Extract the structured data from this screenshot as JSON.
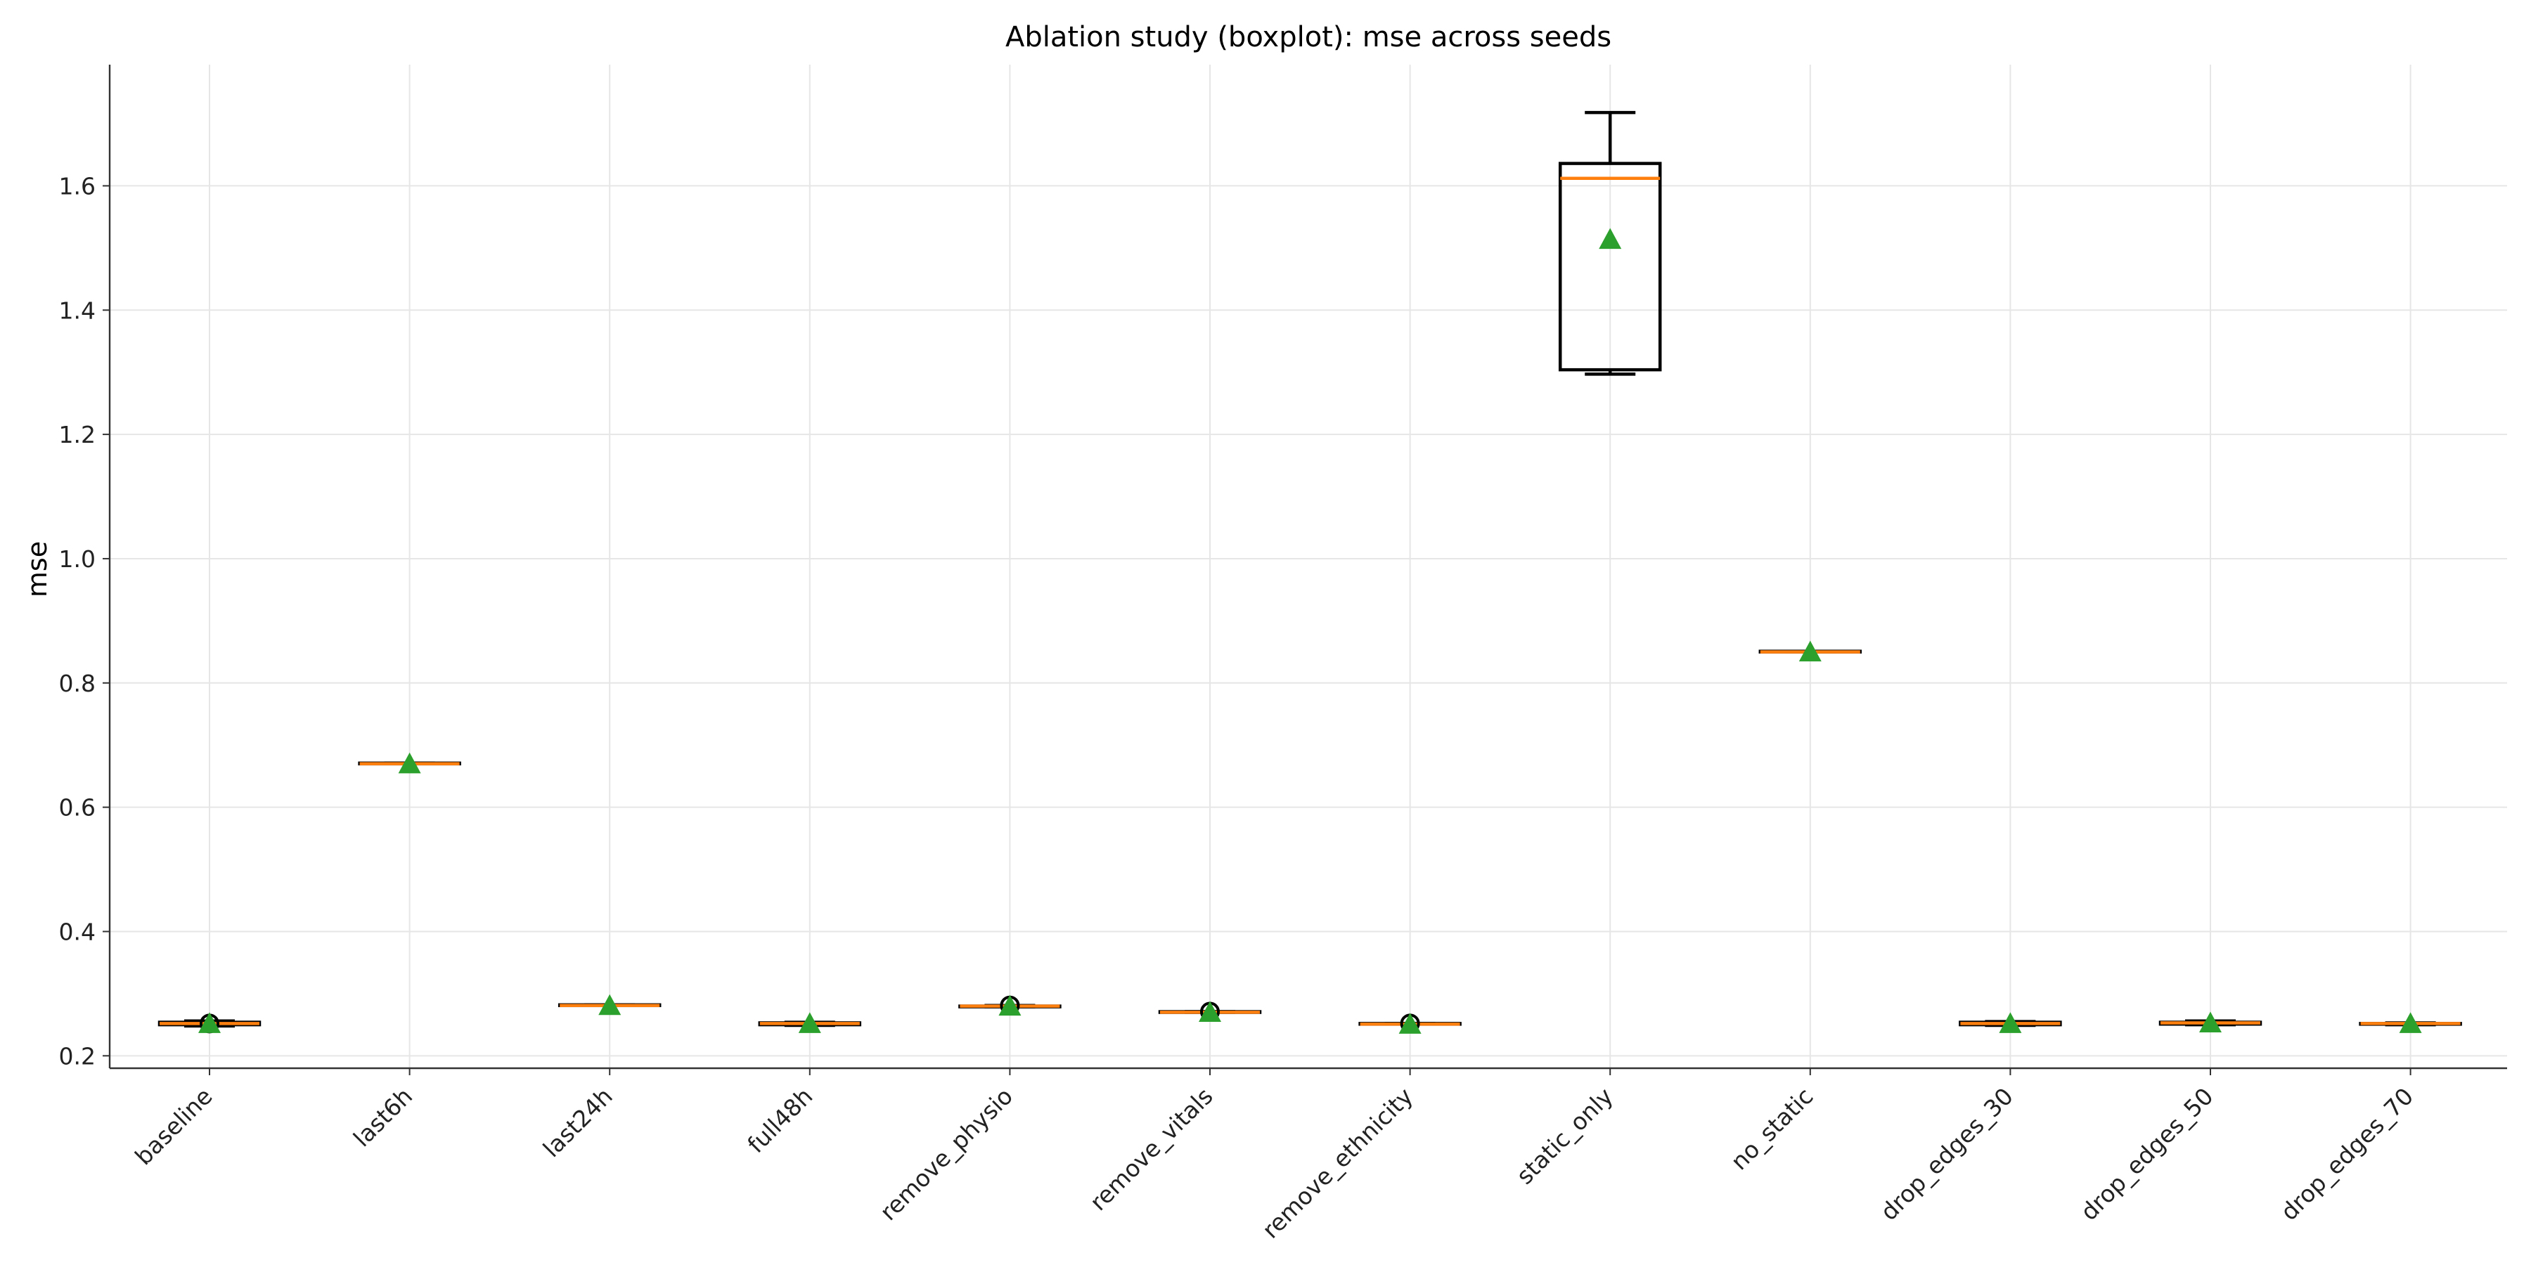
{
  "chart_data": {
    "type": "boxplot",
    "title": "Ablation study (boxplot): mse across seeds",
    "xlabel": "",
    "ylabel": "mse",
    "ylim": [
      0.18,
      1.795
    ],
    "yticks": [
      0.2,
      0.4,
      0.6,
      0.8,
      1.0,
      1.2,
      1.4,
      1.6
    ],
    "ytick_labels": [
      "0.2",
      "0.4",
      "0.6",
      "0.8",
      "1.0",
      "1.2",
      "1.4",
      "1.6"
    ],
    "grid": true,
    "legend": "none",
    "categories": [
      "baseline",
      "last6h",
      "last24h",
      "full48h",
      "remove_physio",
      "remove_vitals",
      "remove_ethnicity",
      "static_only",
      "no_static",
      "drop_edges_30",
      "drop_edges_50",
      "drop_edges_70"
    ],
    "boxes": [
      {
        "whislo": 0.248,
        "q1": 0.25,
        "med": 0.252,
        "q3": 0.254,
        "whishi": 0.256,
        "mean": 0.252,
        "fliers": [
          0.252
        ]
      },
      {
        "whislo": 0.67,
        "q1": 0.67,
        "med": 0.67,
        "q3": 0.671,
        "whishi": 0.671,
        "mean": 0.67,
        "fliers": []
      },
      {
        "whislo": 0.281,
        "q1": 0.281,
        "med": 0.281,
        "q3": 0.282,
        "whishi": 0.282,
        "mean": 0.281,
        "fliers": []
      },
      {
        "whislo": 0.249,
        "q1": 0.25,
        "med": 0.252,
        "q3": 0.253,
        "whishi": 0.254,
        "mean": 0.252,
        "fliers": []
      },
      {
        "whislo": 0.279,
        "q1": 0.279,
        "med": 0.28,
        "q3": 0.28,
        "whishi": 0.281,
        "mean": 0.28,
        "fliers": [
          0.281
        ]
      },
      {
        "whislo": 0.27,
        "q1": 0.27,
        "med": 0.27,
        "q3": 0.271,
        "whishi": 0.271,
        "mean": 0.27,
        "fliers": [
          0.271
        ]
      },
      {
        "whislo": 0.251,
        "q1": 0.251,
        "med": 0.251,
        "q3": 0.252,
        "whishi": 0.252,
        "mean": 0.251,
        "fliers": [
          0.252
        ]
      },
      {
        "whislo": 1.297,
        "q1": 1.304,
        "med": 1.612,
        "q3": 1.636,
        "whishi": 1.718,
        "mean": 1.514,
        "fliers": []
      },
      {
        "whislo": 0.85,
        "q1": 0.85,
        "med": 0.85,
        "q3": 0.851,
        "whishi": 0.851,
        "mean": 0.85,
        "fliers": []
      },
      {
        "whislo": 0.249,
        "q1": 0.25,
        "med": 0.252,
        "q3": 0.254,
        "whishi": 0.255,
        "mean": 0.252,
        "fliers": []
      },
      {
        "whislo": 0.25,
        "q1": 0.251,
        "med": 0.253,
        "q3": 0.254,
        "whishi": 0.256,
        "mean": 0.253,
        "fliers": []
      },
      {
        "whislo": 0.25,
        "q1": 0.251,
        "med": 0.252,
        "q3": 0.252,
        "whishi": 0.253,
        "mean": 0.252,
        "fliers": []
      }
    ],
    "colors": {
      "box": "#000000",
      "median": "#ff7f0e",
      "mean_marker": "#2ca02c",
      "grid": "#e6e6e6"
    }
  }
}
